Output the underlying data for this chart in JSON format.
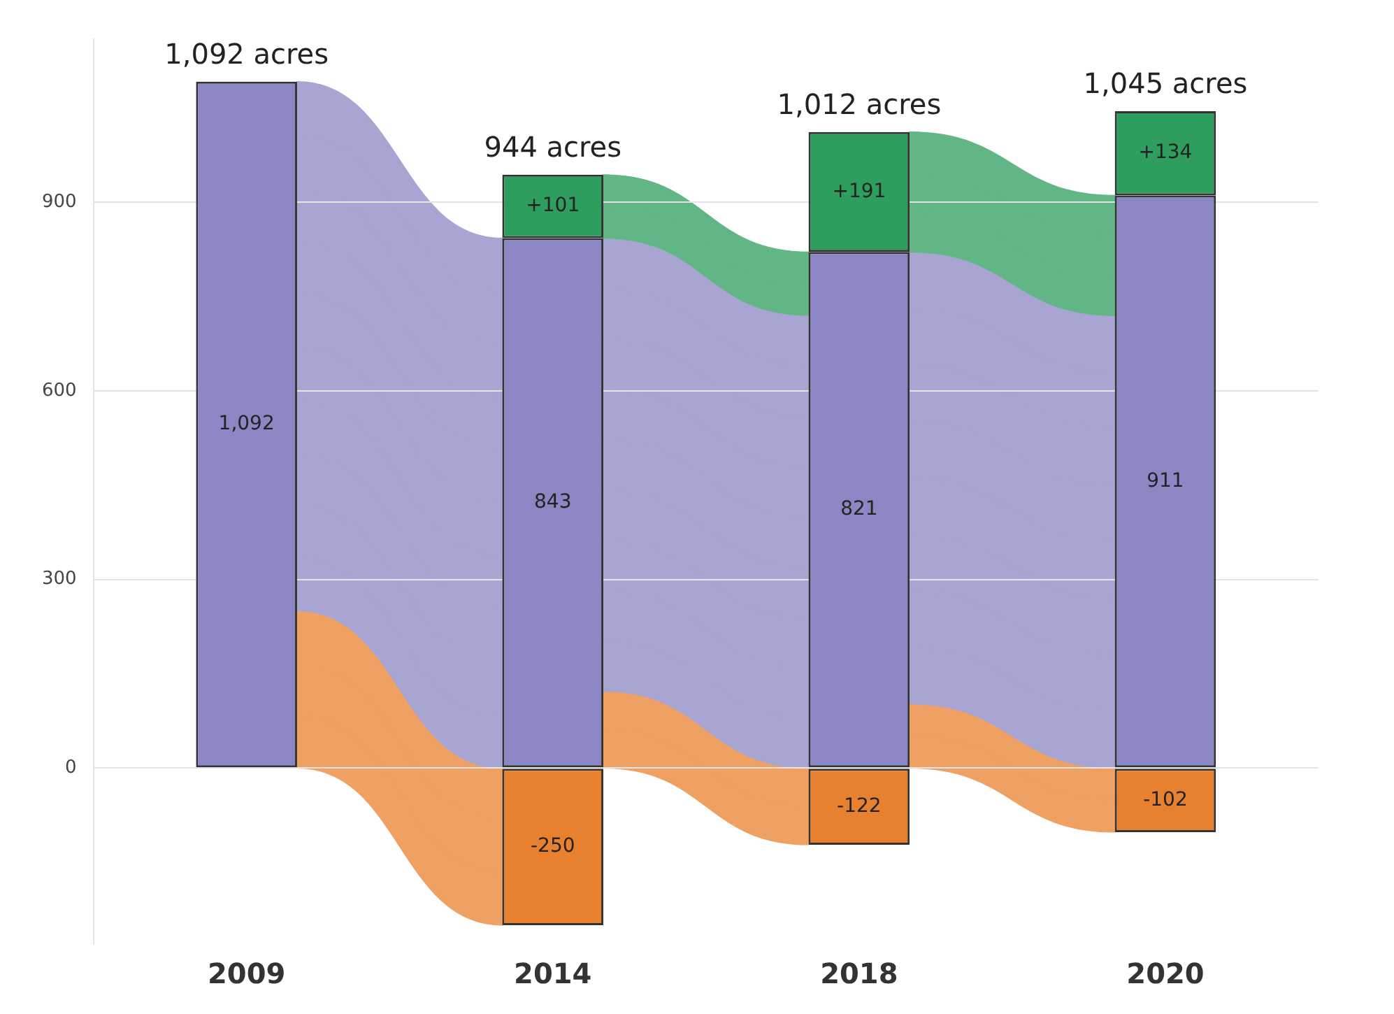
{
  "chart_data": {
    "type": "bar",
    "stacked": true,
    "categories": [
      "2009",
      "2014",
      "2018",
      "2020"
    ],
    "series": [
      {
        "color": "#8b87c4",
        "values": [
          1092,
          843,
          821,
          911
        ],
        "value_labels": [
          "1,092",
          "843",
          "821",
          "911"
        ]
      },
      {
        "color": "#2e9e5e",
        "values": [
          null,
          101,
          191,
          134
        ],
        "value_labels": [
          null,
          "+101",
          "+191",
          "+134"
        ]
      },
      {
        "color": "#e8812f",
        "values": [
          null,
          -250,
          -122,
          -102
        ],
        "value_labels": [
          null,
          "-250",
          "-122",
          "-102"
        ]
      }
    ],
    "annotations": [
      {
        "text": "1,092 acres",
        "x": "2009",
        "y": 1092
      },
      {
        "text": "944 acres",
        "x": "2014",
        "y": 944
      },
      {
        "text": "1,012 acres",
        "x": "2018",
        "y": 1012
      },
      {
        "text": "1,045 acres",
        "x": "2020",
        "y": 1045
      }
    ],
    "ylim": [
      -280,
      1160
    ],
    "yticks": [
      0,
      300,
      600,
      900
    ],
    "grid": "y"
  }
}
